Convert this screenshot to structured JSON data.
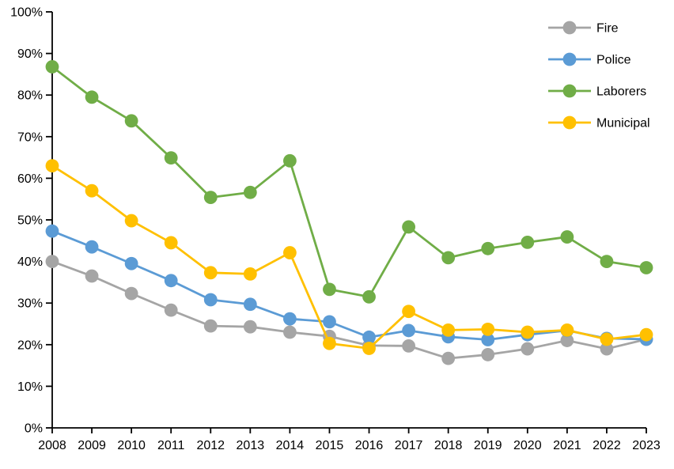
{
  "chart_data": {
    "type": "line",
    "title": "",
    "xlabel": "",
    "ylabel": "",
    "x": [
      2008,
      2009,
      2010,
      2011,
      2012,
      2013,
      2014,
      2015,
      2016,
      2017,
      2018,
      2019,
      2020,
      2021,
      2022,
      2023
    ],
    "series": [
      {
        "name": "Fire",
        "color": "#a5a5a5",
        "values": [
          40.0,
          36.5,
          32.3,
          28.3,
          24.5,
          24.3,
          23.0,
          22.0,
          19.8,
          19.7,
          16.7,
          17.6,
          19.0,
          21.0,
          19.0,
          21.3
        ]
      },
      {
        "name": "Police",
        "color": "#5b9bd5",
        "values": [
          47.3,
          43.5,
          39.5,
          35.4,
          30.8,
          29.7,
          26.2,
          25.5,
          21.8,
          23.4,
          21.9,
          21.2,
          22.4,
          23.4,
          21.5,
          21.3
        ]
      },
      {
        "name": "Laborers",
        "color": "#70ad47",
        "values": [
          86.8,
          79.5,
          73.8,
          64.9,
          55.4,
          56.6,
          64.2,
          33.3,
          31.5,
          48.3,
          40.9,
          43.1,
          44.6,
          45.9,
          40.0,
          38.5
        ]
      },
      {
        "name": "Municipal",
        "color": "#ffc000",
        "values": [
          63.0,
          57.0,
          49.8,
          44.5,
          37.3,
          37.0,
          42.1,
          20.3,
          19.1,
          28.0,
          23.5,
          23.7,
          23.0,
          23.5,
          21.3,
          22.4
        ]
      }
    ],
    "y_axis": {
      "min": 0,
      "max": 100,
      "step": 10,
      "tick_labels": [
        "0%",
        "10%",
        "20%",
        "30%",
        "40%",
        "50%",
        "60%",
        "70%",
        "80%",
        "90%",
        "100%"
      ],
      "format": "percent"
    },
    "x_axis": {
      "tick_labels": [
        "2008",
        "2009",
        "2010",
        "2011",
        "2012",
        "2013",
        "2014",
        "2015",
        "2016",
        "2017",
        "2018",
        "2019",
        "2020",
        "2021",
        "2022",
        "2023"
      ]
    },
    "legend": {
      "entries": [
        "Fire",
        "Police",
        "Laborers",
        "Municipal"
      ],
      "position": "top-right"
    },
    "grid": false,
    "axis_color": "#000000",
    "background_color": "#ffffff",
    "ylim": [
      0,
      100
    ]
  }
}
